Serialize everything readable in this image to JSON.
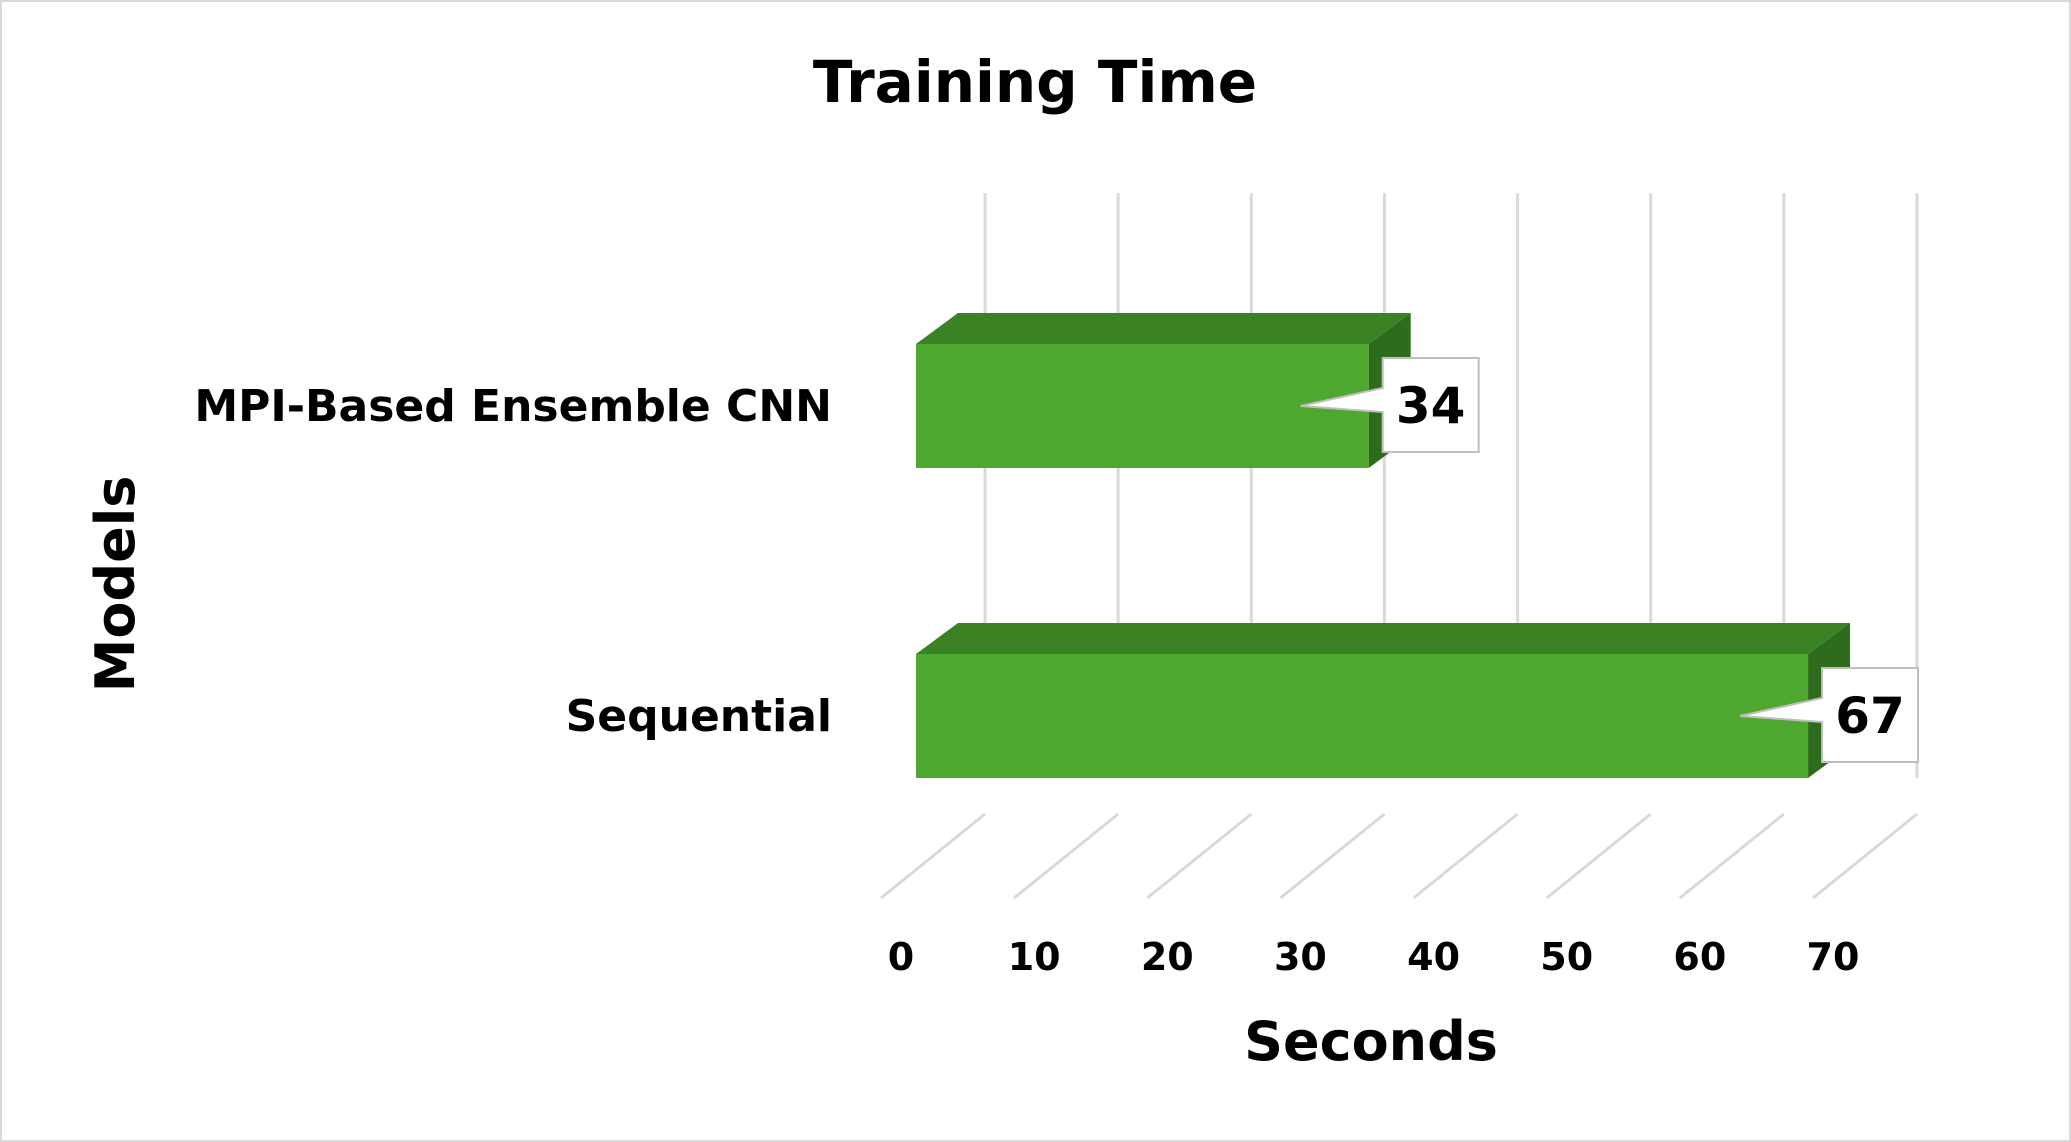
{
  "chart_data": {
    "type": "bar",
    "orientation": "horizontal",
    "style": "3d",
    "title": "Training Time",
    "xlabel": "Seconds",
    "ylabel": "Models",
    "categories": [
      "MPI-Based Ensemble CNN",
      "Sequential"
    ],
    "series": [
      {
        "values": [
          34,
          67
        ]
      }
    ],
    "data_labels": [
      "34",
      "67"
    ],
    "xlim": [
      0,
      70
    ],
    "xticks": [
      "0",
      "10",
      "20",
      "30",
      "40",
      "50",
      "60",
      "70"
    ],
    "grid": true,
    "legend": "none",
    "colors": {
      "bar_front": "#4ea72e",
      "bar_top": "#3b8224",
      "bar_side": "#2f6b1c",
      "grid": "#d9d9d9",
      "frame": "#d9d9d9",
      "callout_border": "#bfbfbf"
    }
  }
}
